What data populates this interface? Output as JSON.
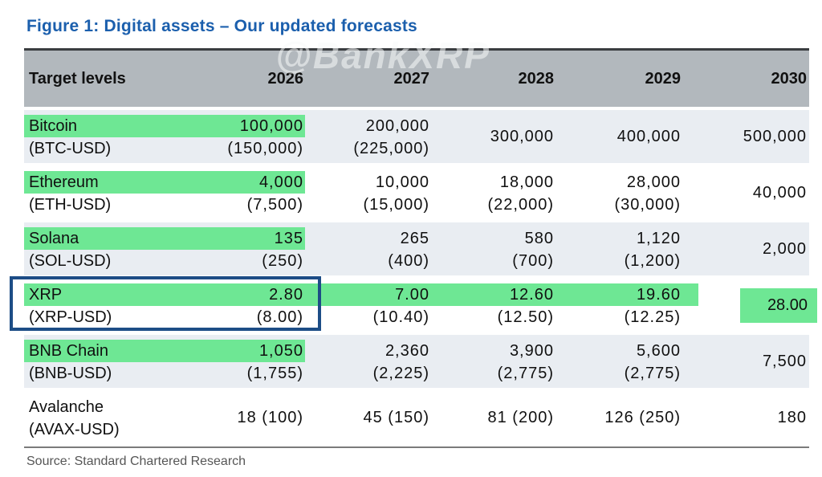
{
  "title": "Figure 1: Digital assets – Our updated forecasts",
  "watermark": "@BankXRP",
  "source": "Source: Standard Chartered Research",
  "header": {
    "label": "Target levels",
    "years": [
      "2026",
      "2027",
      "2028",
      "2029",
      "2030"
    ]
  },
  "rows": [
    {
      "name": "Bitcoin",
      "ticker": "(BTC-USD)",
      "c1": {
        "main": "100,000",
        "sub": "(150,000)"
      },
      "c2": {
        "main": "200,000",
        "sub": "(225,000)"
      },
      "c3": {
        "main": "300,000"
      },
      "c4": {
        "main": "400,000"
      },
      "c5": {
        "main": "500,000"
      }
    },
    {
      "name": "Ethereum",
      "ticker": "(ETH-USD)",
      "c1": {
        "main": "4,000",
        "sub": "(7,500)"
      },
      "c2": {
        "main": "10,000",
        "sub": "(15,000)"
      },
      "c3": {
        "main": "18,000",
        "sub": "(22,000)"
      },
      "c4": {
        "main": "28,000",
        "sub": "(30,000)"
      },
      "c5": {
        "main": "40,000"
      }
    },
    {
      "name": "Solana",
      "ticker": "(SOL-USD)",
      "c1": {
        "main": "135",
        "sub": "(250)"
      },
      "c2": {
        "main": "265",
        "sub": "(400)"
      },
      "c3": {
        "main": "580",
        "sub": "(700)"
      },
      "c4": {
        "main": "1,120",
        "sub": "(1,200)"
      },
      "c5": {
        "main": "2,000"
      }
    },
    {
      "name": "XRP",
      "ticker": "(XRP-USD)",
      "c1": {
        "main": "2.80",
        "sub": "(8.00)"
      },
      "c2": {
        "main": "7.00",
        "sub": "(10.40)"
      },
      "c3": {
        "main": "12.60",
        "sub": "(12.50)"
      },
      "c4": {
        "main": "19.60",
        "sub": "(12.25)"
      },
      "c5": {
        "main": "28.00"
      }
    },
    {
      "name": "BNB Chain",
      "ticker": "(BNB-USD)",
      "c1": {
        "main": "1,050",
        "sub": "(1,755)"
      },
      "c2": {
        "main": "2,360",
        "sub": "(2,225)"
      },
      "c3": {
        "main": "3,900",
        "sub": "(2,775)"
      },
      "c4": {
        "main": "5,600",
        "sub": "(2,775)"
      },
      "c5": {
        "main": "7,500"
      }
    },
    {
      "name": "Avalanche",
      "ticker": "(AVAX-USD)",
      "c1": {
        "main": "18 (100)"
      },
      "c2": {
        "main": "45 (150)"
      },
      "c3": {
        "main": "81 (200)"
      },
      "c4": {
        "main": "126 (250)"
      },
      "c5": {
        "main": "180"
      }
    }
  ],
  "colors": {
    "title_blue": "#1b5fad",
    "header_gray": "#b2b8bd",
    "row_tint_blue": "#e9edf2",
    "highlight_green": "#6ee794",
    "focus_border_navy": "#1d4d86",
    "table_top_border": "#3a3d40",
    "divider_gray": "#7b7b7b",
    "source_gray": "#565656"
  },
  "chart_data": {
    "type": "table",
    "title": "Figure 1: Digital assets – Our updated forecasts",
    "columns": [
      "Target levels",
      "2026",
      "2027",
      "2028",
      "2029",
      "2030"
    ],
    "rows": [
      {
        "asset": "Bitcoin",
        "ticker": "BTC-USD",
        "2026": {
          "main": 100000,
          "paren": 150000
        },
        "2027": {
          "main": 200000,
          "paren": 225000
        },
        "2028": {
          "main": 300000
        },
        "2029": {
          "main": 400000
        },
        "2030": {
          "main": 500000
        }
      },
      {
        "asset": "Ethereum",
        "ticker": "ETH-USD",
        "2026": {
          "main": 4000,
          "paren": 7500
        },
        "2027": {
          "main": 10000,
          "paren": 15000
        },
        "2028": {
          "main": 18000,
          "paren": 22000
        },
        "2029": {
          "main": 28000,
          "paren": 30000
        },
        "2030": {
          "main": 40000
        }
      },
      {
        "asset": "Solana",
        "ticker": "SOL-USD",
        "2026": {
          "main": 135,
          "paren": 250
        },
        "2027": {
          "main": 265,
          "paren": 400
        },
        "2028": {
          "main": 580,
          "paren": 700
        },
        "2029": {
          "main": 1120,
          "paren": 1200
        },
        "2030": {
          "main": 2000
        }
      },
      {
        "asset": "XRP",
        "ticker": "XRP-USD",
        "2026": {
          "main": 2.8,
          "paren": 8.0
        },
        "2027": {
          "main": 7.0,
          "paren": 10.4
        },
        "2028": {
          "main": 12.6,
          "paren": 12.5
        },
        "2029": {
          "main": 19.6,
          "paren": 12.25
        },
        "2030": {
          "main": 28.0
        }
      },
      {
        "asset": "BNB Chain",
        "ticker": "BNB-USD",
        "2026": {
          "main": 1050,
          "paren": 1755
        },
        "2027": {
          "main": 2360,
          "paren": 2225
        },
        "2028": {
          "main": 3900,
          "paren": 2775
        },
        "2029": {
          "main": 5600,
          "paren": 2775
        },
        "2030": {
          "main": 7500
        }
      },
      {
        "asset": "Avalanche",
        "ticker": "AVAX-USD",
        "2026": {
          "main": 18,
          "paren": 100
        },
        "2027": {
          "main": 45,
          "paren": 150
        },
        "2028": {
          "main": 81,
          "paren": 200
        },
        "2029": {
          "main": 126,
          "paren": 250
        },
        "2030": {
          "main": 180
        }
      }
    ],
    "annotations": {
      "outlined_row": "XRP",
      "green_highlighted": "Asset names with 2026 targets; XRP 2026-2030 targets",
      "watermark": "@BankXRP",
      "source": "Source: Standard Chartered Research"
    },
    "legend_position": "none",
    "grid": false
  }
}
